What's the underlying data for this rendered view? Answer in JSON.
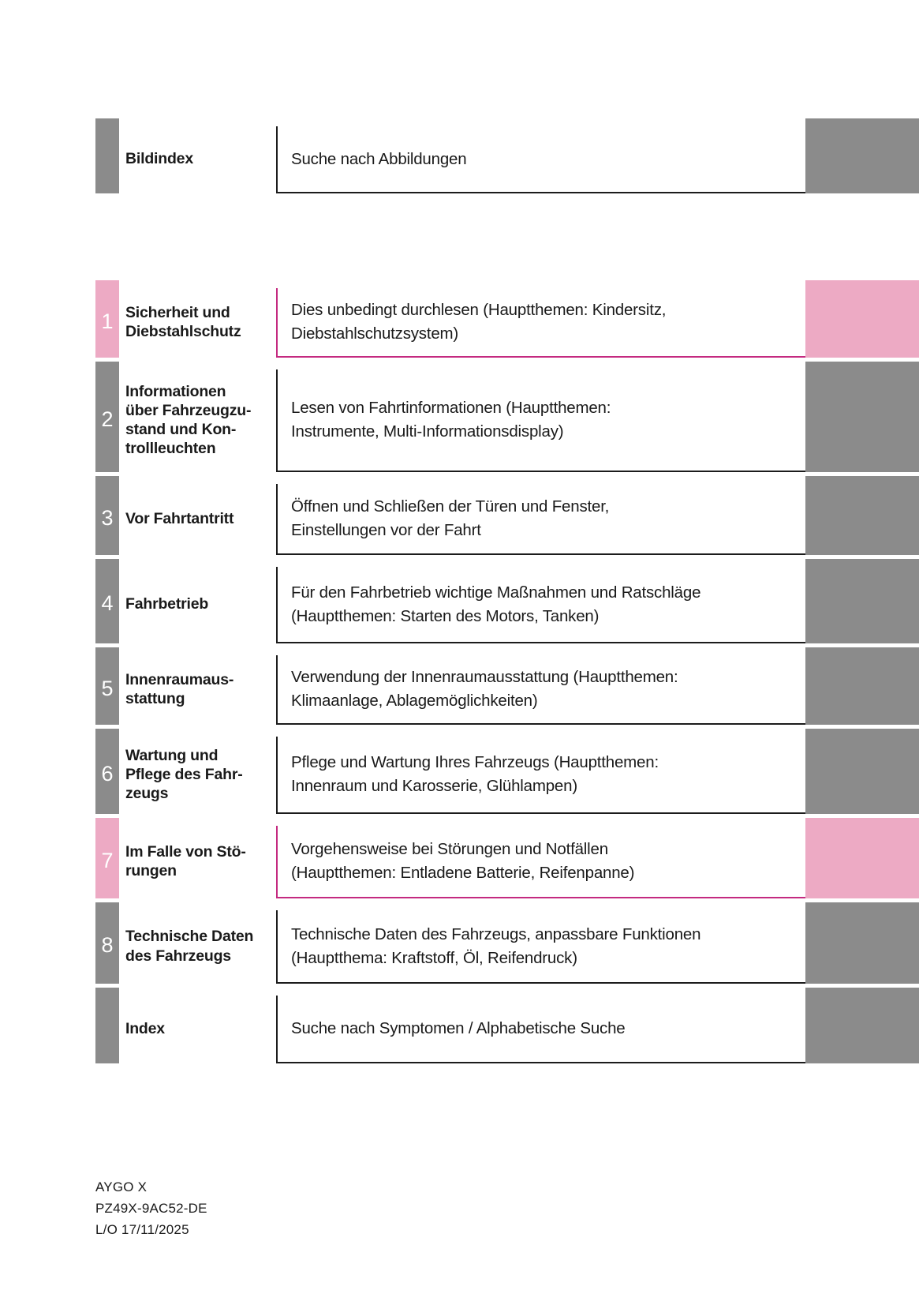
{
  "toc": {
    "rows": [
      {
        "number": "",
        "label": "Bildindex",
        "description": "Suche nach Abbildungen",
        "highlight": false
      },
      {
        "number": "1",
        "label": "Sicherheit und\nDiebstahlschutz",
        "description": "Dies unbedingt durchlesen (Hauptthemen: Kindersitz,\nDiebstahlschutzsystem)",
        "highlight": true
      },
      {
        "number": "2",
        "label": "Informationen\nüber Fahrzeugzu-\nstand und Kon-\ntrollleuchten",
        "description": "Lesen von Fahrtinformationen (Hauptthemen:\nInstrumente, Multi-Informationsdisplay)",
        "highlight": false
      },
      {
        "number": "3",
        "label": "Vor Fahrtantritt",
        "description": "Öffnen und Schließen der Türen und Fenster,\nEinstellungen vor der Fahrt",
        "highlight": false
      },
      {
        "number": "4",
        "label": "Fahrbetrieb",
        "description": "Für den Fahrbetrieb wichtige Maßnahmen und Ratschläge\n(Hauptthemen: Starten des Motors, Tanken)",
        "highlight": false
      },
      {
        "number": "5",
        "label": "Innenraumaus-\nstattung",
        "description": "Verwendung der Innenraumausstattung (Hauptthemen:\nKlimaanlage, Ablagemöglichkeiten)",
        "highlight": false
      },
      {
        "number": "6",
        "label": "Wartung und\nPflege des Fahr-\nzeugs",
        "description": "Pflege und Wartung Ihres Fahrzeugs (Hauptthemen:\nInnenraum und Karosserie, Glühlampen)",
        "highlight": false
      },
      {
        "number": "7",
        "label": "Im Falle von Stö-\nrungen",
        "description": "Vorgehensweise bei Störungen und Notfällen\n(Hauptthemen: Entladene Batterie, Reifenpanne)",
        "highlight": true
      },
      {
        "number": "8",
        "label": "Technische Daten\ndes Fahrzeugs",
        "description": "Technische Daten des Fahrzeugs, anpassbare Funktionen\n(Hauptthema: Kraftstoff, Öl, Reifendruck)",
        "highlight": false
      },
      {
        "number": "",
        "label": "Index",
        "description": "Suche nach Symptomen / Alphabetische Suche",
        "highlight": false
      }
    ]
  },
  "footer": {
    "model": "AYGO X",
    "publication_code": "PZ49X-9AC52-DE",
    "layout_date": "L/O 17/11/2025"
  },
  "colors": {
    "tab_gray": "#8b8b8b",
    "tab_pink": "#edaac4",
    "border_dark": "#1c1c1c",
    "border_pink": "#c42a80",
    "text": "#1a1a1a"
  }
}
